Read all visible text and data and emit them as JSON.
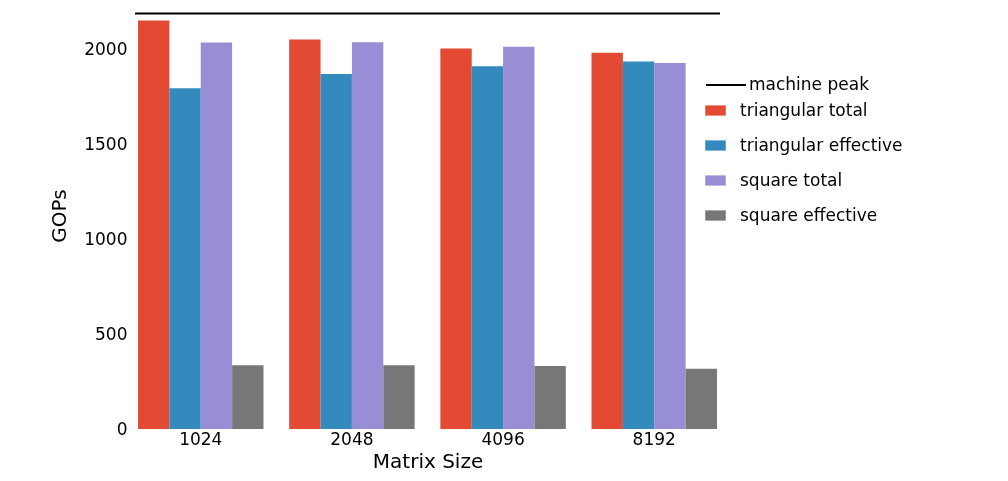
{
  "chart_data": {
    "type": "bar",
    "xlabel": "Matrix Size",
    "ylabel": "GOPs",
    "categories": [
      "1024",
      "2048",
      "4096",
      "8192"
    ],
    "series": [
      {
        "name": "triangular total",
        "color": "#e24a33",
        "values": [
          2153,
          2052,
          2005,
          1982
        ]
      },
      {
        "name": "triangular effective",
        "color": "#348abd",
        "values": [
          1795,
          1871,
          1912,
          1936
        ]
      },
      {
        "name": "square total",
        "color": "#988ed5",
        "values": [
          2036,
          2038,
          2014,
          1929
        ]
      },
      {
        "name": "square effective",
        "color": "#777777",
        "values": [
          336,
          336,
          332,
          318
        ]
      }
    ],
    "ref_lines": [
      {
        "axis": "y",
        "value": 2190,
        "label": "machine peak",
        "color": "#000000"
      }
    ],
    "ylim": [
      0,
      2250
    ],
    "yticks": [
      0,
      500,
      1000,
      1500,
      2000
    ],
    "grid": false,
    "legend": "right"
  }
}
